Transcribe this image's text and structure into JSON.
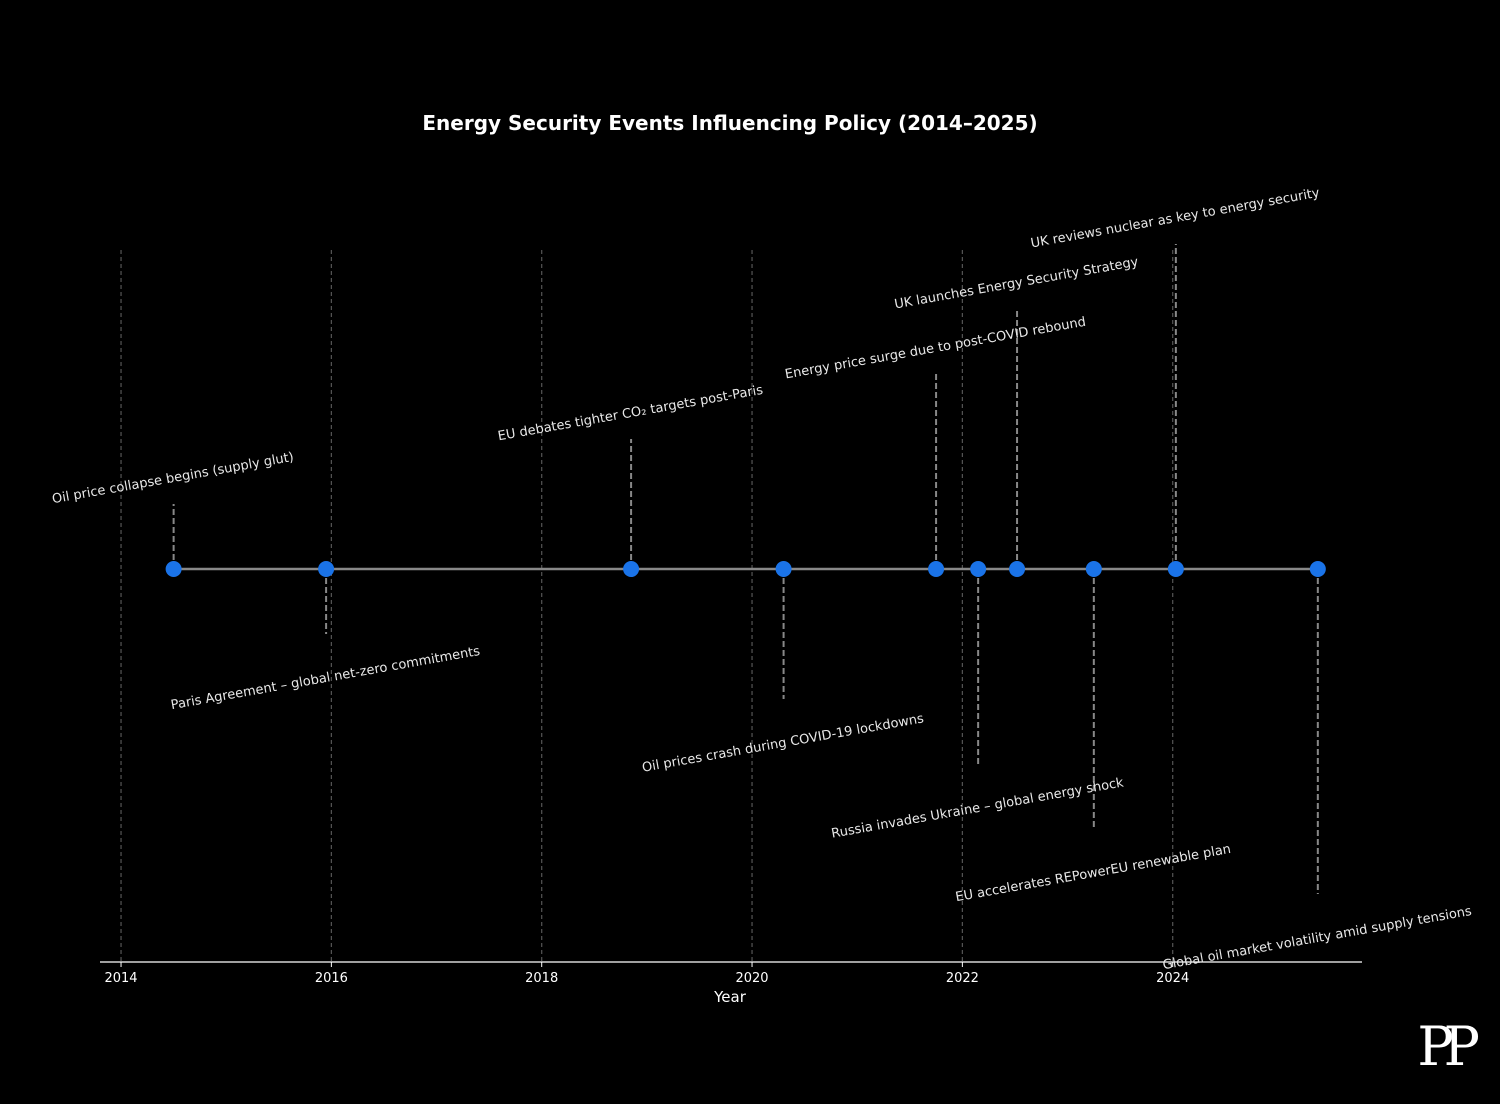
{
  "chart_data": {
    "type": "timeline",
    "title": "Energy Security Events Influencing Policy (2014–2025)",
    "xlabel": "Year",
    "xlim": [
      2013.8,
      2025.8
    ],
    "xticks": [
      "2014",
      "2016",
      "2018",
      "2020",
      "2022",
      "2024"
    ],
    "grid": "vertical dashed",
    "colors": {
      "background": "#000000",
      "marker": "#1a73e8",
      "timeline": "#888888",
      "stem": "#888888",
      "grid": "#555555",
      "axis": "#ffffff",
      "text": "#ffffff"
    },
    "events": [
      {
        "date": 2014.5,
        "label": "Oil price collapse begins (supply glut)",
        "level": 1
      },
      {
        "date": 2015.95,
        "label": "Paris Agreement – global net-zero commitments",
        "level": -1
      },
      {
        "date": 2018.85,
        "label": "EU debates tighter CO₂ targets post-Paris",
        "level": 2
      },
      {
        "date": 2020.3,
        "label": "Oil prices crash during COVID-19 lockdowns",
        "level": -2
      },
      {
        "date": 2021.75,
        "label": "Energy price surge due to post-COVID rebound",
        "level": 3
      },
      {
        "date": 2022.15,
        "label": "Russia invades Ukraine – global energy shock",
        "level": -3
      },
      {
        "date": 2022.52,
        "label": "UK launches Energy Security Strategy",
        "level": 4
      },
      {
        "date": 2023.25,
        "label": "EU accelerates REPowerEU renewable plan",
        "level": -4
      },
      {
        "date": 2024.03,
        "label": "UK reviews nuclear as key to energy security",
        "level": 5
      },
      {
        "date": 2025.38,
        "label": "Global oil market volatility amid supply tensions",
        "level": -5
      }
    ]
  },
  "branding": {
    "logo_text": "PP"
  }
}
